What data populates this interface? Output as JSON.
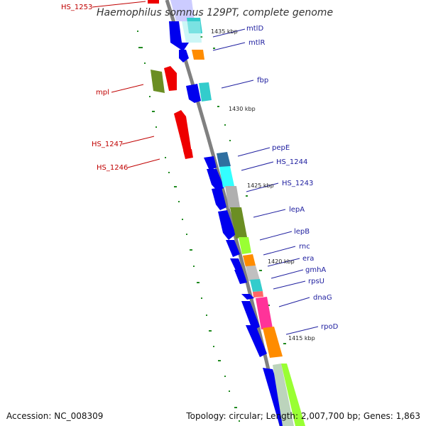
{
  "title": "Haemophilus somnus 129PT, complete genome",
  "footer": {
    "accession": "Accession: NC_008309",
    "topology": "Topology: circular; Length: 2,007,700 bp; Genes: 1,863"
  },
  "scale_labels": [
    "1435 kbp",
    "1430 kbp",
    "1425 kbp",
    "1420 kbp",
    "1415 kbp"
  ],
  "gene_labels_plus": [
    "mtlD",
    "mtlR",
    "fbp",
    "pepE",
    "HS_1244",
    "HS_1243",
    "lepA",
    "lepB",
    "rnc",
    "era",
    "gmhA",
    "rpsU",
    "dnaG",
    "rpoD"
  ],
  "gene_labels_minus": [
    "HS_1253",
    "mpl",
    "HS_1247",
    "HS_1246"
  ],
  "colors": {
    "backbone": "#808080",
    "cds_strand": "#0000ee",
    "trna": "#ee0000",
    "cog_cyan": "#33cccc",
    "cog_orange": "#ff8c00",
    "cog_olive": "#6b8e23",
    "cog_gray": "#b0b0b0",
    "cog_lightgreen": "#99ff33",
    "cog_pink": "#ff3399",
    "tick_green": "#228b22",
    "label_blue": "#2020a0",
    "label_red": "#c00000"
  }
}
